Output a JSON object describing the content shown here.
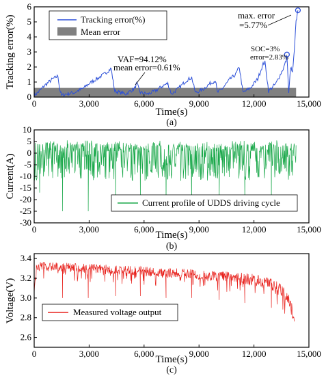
{
  "chart_data": [
    {
      "type": "line",
      "caption": "(a)",
      "xlabel": "Time(s)",
      "ylabel": "Tracking error(%)",
      "xlim": [
        0,
        15000
      ],
      "ylim": [
        0,
        6
      ],
      "xticks": [
        "0",
        "3,000",
        "6,000",
        "9,000",
        "12,000",
        "15,000"
      ],
      "yticks": [
        "0",
        "1",
        "2",
        "3",
        "4",
        "5",
        "6"
      ],
      "xtick_values": [
        0,
        3000,
        6000,
        9000,
        12000,
        15000
      ],
      "ytick_values": [
        0,
        1,
        2,
        3,
        4,
        5,
        6
      ],
      "legend": {
        "position": "top-left",
        "entries": [
          "Tracking error(%)",
          "Mean error"
        ]
      },
      "color": "#2b4fd8",
      "mean_fill": "#808080",
      "mean_value": 0.61,
      "series": [
        {
          "name": "Tracking error(%)",
          "x": [
            0,
            200,
            600,
            1000,
            1300,
            1400,
            1500,
            1700,
            2200,
            2700,
            3000,
            3400,
            3800,
            4100,
            4200,
            4400,
            5000,
            5500,
            5600,
            5800,
            6200,
            6600,
            7100,
            7300,
            7500,
            7900,
            8300,
            8600,
            8800,
            9200,
            9600,
            9900,
            10000,
            10300,
            10700,
            11000,
            11200,
            11400,
            11800,
            12200,
            12500,
            12600,
            12800,
            13200,
            13600,
            13750,
            13800,
            13900,
            14000,
            14100,
            14200,
            14300,
            14400
          ],
          "y": [
            0.1,
            0.3,
            0.8,
            1.2,
            1.4,
            0.5,
            0.1,
            0.2,
            0.3,
            0.6,
            0.9,
            1.2,
            1.5,
            1.8,
            1.9,
            0.4,
            0.2,
            0.6,
            0.9,
            0.3,
            0.2,
            0.4,
            0.8,
            0.9,
            0.2,
            0.6,
            1.1,
            1.3,
            0.3,
            0.5,
            0.9,
            1.1,
            0.3,
            0.6,
            1.2,
            1.5,
            2.0,
            0.3,
            0.6,
            1.2,
            2.2,
            2.3,
            0.4,
            0.9,
            1.9,
            2.4,
            2.83,
            0.2,
            2.0,
            1.6,
            3.0,
            5.0,
            5.77
          ]
        }
      ],
      "annotations": [
        {
          "text": "VAF=94.12%",
          "x": 6800,
          "y": 1.5
        },
        {
          "text": "mean error=0.61%",
          "x": 6600,
          "y": 0.9
        },
        {
          "text": "max. error",
          "x": 12000,
          "y": 5.5
        },
        {
          "text": "=5.77%",
          "x": 12000,
          "y": 4.8
        },
        {
          "text": "SOC=3%",
          "x": 11800,
          "y": 3.1
        },
        {
          "text": "error=2.83%",
          "x": 11800,
          "y": 2.45
        }
      ],
      "markers": [
        {
          "x": 14400,
          "y": 5.77
        },
        {
          "x": 13800,
          "y": 2.83
        }
      ]
    },
    {
      "type": "line",
      "caption": "(b)",
      "xlabel": "Time(s)",
      "ylabel": "Current(A)",
      "xlim": [
        0,
        15000
      ],
      "ylim": [
        -30,
        10
      ],
      "xticks": [
        "0",
        "3,000",
        "6,000",
        "9,000",
        "12,000",
        "15,000"
      ],
      "yticks": [
        "10",
        "5",
        "0",
        "-5",
        "-10",
        "-15",
        "-20",
        "-25",
        "-30"
      ],
      "xtick_values": [
        0,
        3000,
        6000,
        9000,
        12000,
        15000
      ],
      "ytick_values": [
        10,
        5,
        0,
        -5,
        -10,
        -15,
        -20,
        -25,
        -30
      ],
      "legend": {
        "position": "bottom-right",
        "entries": [
          "Current profile of UDDS driving cycle"
        ]
      },
      "color": "#1aa84a",
      "range": {
        "min": -25.5,
        "max": 5.5,
        "typical_low": -12,
        "typical_high": 4
      },
      "spikes": [
        {
          "x": 1550,
          "y": -25
        },
        {
          "x": 2950,
          "y": -25
        },
        {
          "x": 4450,
          "y": -22
        },
        {
          "x": 5800,
          "y": -20
        },
        {
          "x": 7200,
          "y": -22
        },
        {
          "x": 8600,
          "y": -22
        },
        {
          "x": 10100,
          "y": -20
        },
        {
          "x": 11500,
          "y": -20
        },
        {
          "x": 12950,
          "y": -21
        },
        {
          "x": 300,
          "y": -17
        }
      ]
    },
    {
      "type": "line",
      "caption": "(c)",
      "xlabel": "Time(s)",
      "ylabel": "Voltage(V)",
      "xlim": [
        0,
        15000
      ],
      "ylim": [
        2.5,
        3.45
      ],
      "xticks": [
        "0",
        "3,000",
        "6,000",
        "9,000",
        "12,000",
        "15,000"
      ],
      "yticks": [
        "3.4",
        "3.2",
        "3.0",
        "2.8",
        "2.6"
      ],
      "xtick_values": [
        0,
        3000,
        6000,
        9000,
        12000,
        15000
      ],
      "ytick_values": [
        3.4,
        3.2,
        3.0,
        2.8,
        2.6
      ],
      "legend": {
        "position": "bottom-left",
        "entries": [
          "Measured voltage output"
        ]
      },
      "color": "#e8231e",
      "envelope": {
        "x": [
          0,
          100,
          2000,
          4000,
          6000,
          8000,
          10000,
          12000,
          13000,
          13500,
          13800,
          14000,
          14200
        ],
        "upper": [
          3.05,
          3.38,
          3.37,
          3.35,
          3.33,
          3.31,
          3.29,
          3.26,
          3.22,
          3.16,
          3.1,
          3.0,
          2.9
        ],
        "lower": [
          3.05,
          3.2,
          3.17,
          3.15,
          3.13,
          3.11,
          3.07,
          3.02,
          2.95,
          2.88,
          2.8,
          2.7,
          2.62
        ]
      },
      "spikes": [
        {
          "x": 1550,
          "y": 3.0
        },
        {
          "x": 2950,
          "y": 3.0
        },
        {
          "x": 4450,
          "y": 3.02
        },
        {
          "x": 5800,
          "y": 3.02
        },
        {
          "x": 7200,
          "y": 3.0
        },
        {
          "x": 8600,
          "y": 3.0
        },
        {
          "x": 10100,
          "y": 2.98
        },
        {
          "x": 11500,
          "y": 2.95
        },
        {
          "x": 12950,
          "y": 2.9
        }
      ]
    }
  ]
}
